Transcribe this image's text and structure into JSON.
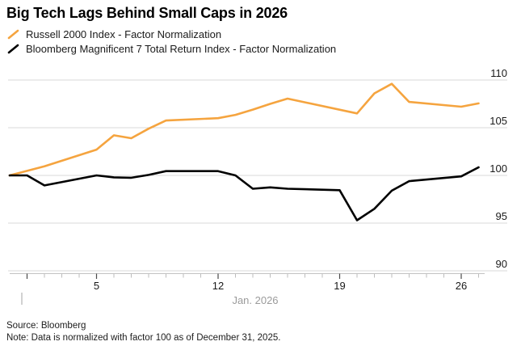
{
  "title": "Big Tech Lags Behind Small Caps in 2026",
  "legend": [
    {
      "label": "Russell 2000 Index - Factor Normalization",
      "color": "#F5A43F"
    },
    {
      "label": "Bloomberg Magnificent 7 Total Return Index - Factor Normalization",
      "color": "#000000"
    }
  ],
  "footer": {
    "source": "Source: Bloomberg",
    "note": "Note: Data is normalized with factor 100 as of December 31, 2025."
  },
  "colors": {
    "russell_line": "#F5A43F",
    "mag7_line": "#000000",
    "gridline": "#DADADA",
    "axis_line": "#C2C2C2",
    "minor_tick": "#BDBDBD",
    "major_tick": "#4A4A4A",
    "tick_label": "#1A1A1A",
    "month_label": "#9B9B9B"
  },
  "chart_data": {
    "type": "line",
    "title": "Big Tech Lags Behind Small Caps in 2026",
    "x_axis": {
      "label": "Jan. 2026",
      "unit": "day of January 2026 (0 = Dec 31, 2025)",
      "major_ticks": [
        {
          "day": 5,
          "label": "5"
        },
        {
          "day": 12,
          "label": "12"
        },
        {
          "day": 19,
          "label": "19"
        },
        {
          "day": 26,
          "label": "26"
        }
      ],
      "month_start_day": 1,
      "minor_tick_days": [
        1,
        2,
        3,
        4,
        5,
        6,
        7,
        8,
        9,
        10,
        11,
        12,
        13,
        14,
        15,
        16,
        17,
        18,
        19,
        20,
        21,
        22,
        23,
        24,
        25,
        26,
        27
      ],
      "domain": [
        0,
        27.4
      ]
    },
    "y_axis": {
      "side": "right",
      "ticks": [
        110,
        105,
        100,
        95,
        90
      ],
      "range": [
        88.5,
        111.7
      ],
      "grid": true
    },
    "series": [
      {
        "name": "Russell 2000 Index - Factor Normalization",
        "color": "#F5A43F",
        "points": [
          [
            0,
            100.0
          ],
          [
            2,
            100.95
          ],
          [
            5,
            102.7
          ],
          [
            6,
            104.2
          ],
          [
            7,
            103.9
          ],
          [
            8,
            104.9
          ],
          [
            9,
            105.75
          ],
          [
            12,
            106.0
          ],
          [
            13,
            106.35
          ],
          [
            14,
            106.9
          ],
          [
            15,
            107.5
          ],
          [
            16,
            108.05
          ],
          [
            20,
            106.5
          ],
          [
            21,
            108.6
          ],
          [
            22,
            109.6
          ],
          [
            23,
            107.7
          ],
          [
            26,
            107.2
          ],
          [
            27,
            107.55
          ]
        ]
      },
      {
        "name": "Bloomberg Magnificent 7 Total Return Index - Factor Normalization",
        "color": "#000000",
        "points": [
          [
            0,
            100.0
          ],
          [
            1,
            100.0
          ],
          [
            2,
            98.95
          ],
          [
            5,
            100.0
          ],
          [
            6,
            99.8
          ],
          [
            7,
            99.75
          ],
          [
            8,
            100.05
          ],
          [
            9,
            100.45
          ],
          [
            12,
            100.45
          ],
          [
            13,
            100.0
          ],
          [
            14,
            98.6
          ],
          [
            15,
            98.75
          ],
          [
            16,
            98.6
          ],
          [
            19,
            98.45
          ],
          [
            20,
            95.3
          ],
          [
            21,
            96.5
          ],
          [
            22,
            98.4
          ],
          [
            23,
            99.4
          ],
          [
            26,
            99.9
          ],
          [
            27,
            100.85
          ]
        ]
      }
    ]
  }
}
